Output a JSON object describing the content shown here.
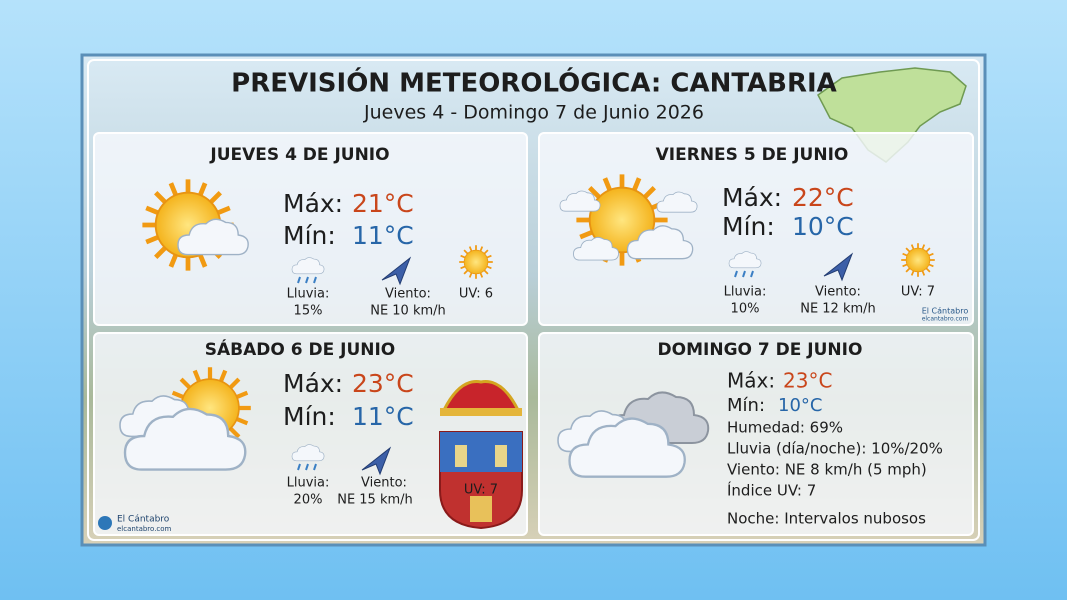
{
  "header": {
    "title": "PREVISIÓN METEOROLÓGICA: CANTABRIA",
    "subtitle": "Jueves 4 - Domingo 7 de Junio 2026"
  },
  "days": [
    {
      "title": "JUEVES 4 DE JUNIO",
      "max_label": "Máx:",
      "max": "21°C",
      "min_label": "Mín:",
      "min": "11°C",
      "rain_label": "Lluvia:",
      "rain": "15%",
      "wind_label": "Viento:",
      "wind": "NE 10 km/h",
      "uv": "UV: 6"
    },
    {
      "title": "VIERNES 5 DE JUNIO",
      "max_label": "Máx:",
      "max": "22°C",
      "min_label": "Mín:",
      "min": "10°C",
      "rain_label": "Lluvia:",
      "rain": "10%",
      "wind_label": "Viento:",
      "wind": "NE 12 km/h",
      "uv": "UV: 7"
    },
    {
      "title": "SÁBADO 6 DE JUNIO",
      "max_label": "Máx:",
      "max": "23°C",
      "min_label": "Mín:",
      "min": "11°C",
      "rain_label": "Lluvia:",
      "rain": "20%",
      "wind_label": "Viento:",
      "wind": "NE 15 km/h",
      "uv": "UV: 7"
    },
    {
      "title": "DOMINGO 7 DE JUNIO",
      "max_label": "Máx:",
      "max": "23°C",
      "min_label": "Mín:",
      "min": "10°C",
      "details": [
        "Humedad: 69%",
        "Lluvia (día/noche): 10%/20%",
        "Viento: NE 8 km/h (5 mph)",
        "Índice UV: 7"
      ],
      "night": "Noche: Intervalos nubosos"
    }
  ],
  "branding": {
    "name": "El Cántabro",
    "site": "elcantabro.com"
  }
}
